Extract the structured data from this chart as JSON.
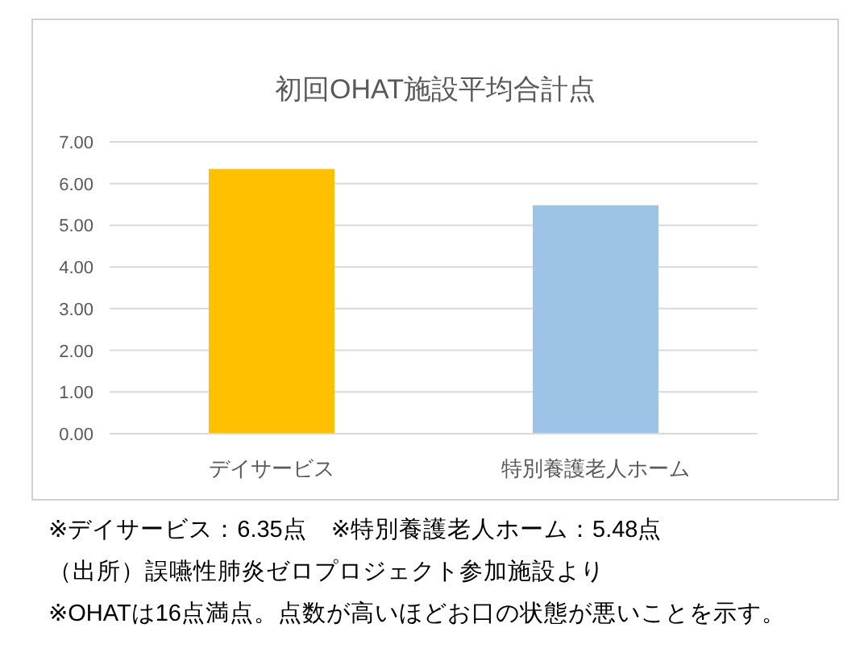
{
  "chart_data": {
    "type": "bar",
    "title": "初回OHAT施設平均合計点",
    "categories": [
      "デイサービス",
      "特別養護老人ホーム"
    ],
    "values": [
      6.35,
      5.48
    ],
    "colors": [
      "#ffc000",
      "#9dc3e6"
    ],
    "ylim": [
      0,
      7
    ],
    "yticks": [
      {
        "value": 0,
        "label": "0.00"
      },
      {
        "value": 1,
        "label": "1.00"
      },
      {
        "value": 2,
        "label": "2.00"
      },
      {
        "value": 3,
        "label": "3.00"
      },
      {
        "value": 4,
        "label": "4.00"
      },
      {
        "value": 5,
        "label": "5.00"
      },
      {
        "value": 6,
        "label": "6.00"
      },
      {
        "value": 7,
        "label": "7.00"
      }
    ],
    "grid": "y",
    "annotations": [
      "※デイサービス：6.35点　※特別養護老人ホーム：5.48点",
      "（出所）誤嚥性肺炎ゼロプロジェクト参加施設より",
      "※OHATは16点満点。点数が高いほどお口の状態が悪いことを示す。"
    ]
  }
}
